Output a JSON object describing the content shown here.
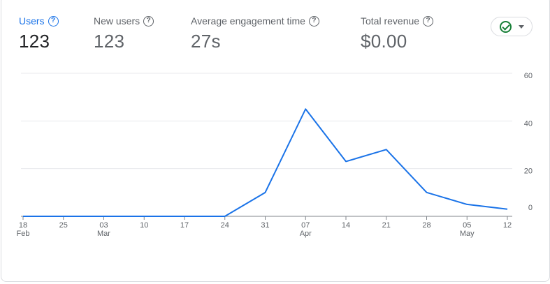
{
  "metrics": [
    {
      "label": "Users",
      "value": "123",
      "active": true
    },
    {
      "label": "New users",
      "value": "123",
      "active": false
    },
    {
      "label": "Average engagement time",
      "value": "27s",
      "active": false
    },
    {
      "label": "Total revenue",
      "value": "$0.00",
      "active": false
    }
  ],
  "help_glyph": "?",
  "compare_button": {
    "icon": "check-circle-icon",
    "caret": "caret-down-icon"
  },
  "colors": {
    "accent": "#1a73e8",
    "line": "#1a73e8",
    "check": "#188038",
    "grid": "#e8eaed",
    "text_muted": "#5f6368"
  },
  "chart_data": {
    "type": "line",
    "title": "",
    "xlabel": "",
    "ylabel": "",
    "ylim": [
      0,
      60
    ],
    "y_ticks": [
      "60",
      "40",
      "20",
      "0"
    ],
    "grid": true,
    "x": [
      "Feb 18",
      "Feb 25",
      "Mar 03",
      "Mar 10",
      "Mar 17",
      "Mar 24",
      "Mar 31",
      "Apr 07",
      "Apr 14",
      "Apr 21",
      "Apr 28",
      "May 05",
      "May 12"
    ],
    "x_tick_labels": [
      {
        "day": "18",
        "month": "Feb"
      },
      {
        "day": "25",
        "month": ""
      },
      {
        "day": "03",
        "month": "Mar"
      },
      {
        "day": "10",
        "month": ""
      },
      {
        "day": "17",
        "month": ""
      },
      {
        "day": "24",
        "month": ""
      },
      {
        "day": "31",
        "month": ""
      },
      {
        "day": "07",
        "month": "Apr"
      },
      {
        "day": "14",
        "month": ""
      },
      {
        "day": "21",
        "month": ""
      },
      {
        "day": "28",
        "month": ""
      },
      {
        "day": "05",
        "month": "May"
      },
      {
        "day": "12",
        "month": ""
      }
    ],
    "series": [
      {
        "values": [
          0,
          0,
          0,
          0,
          0,
          0,
          10,
          45,
          23,
          28,
          10,
          5,
          3
        ]
      }
    ]
  }
}
